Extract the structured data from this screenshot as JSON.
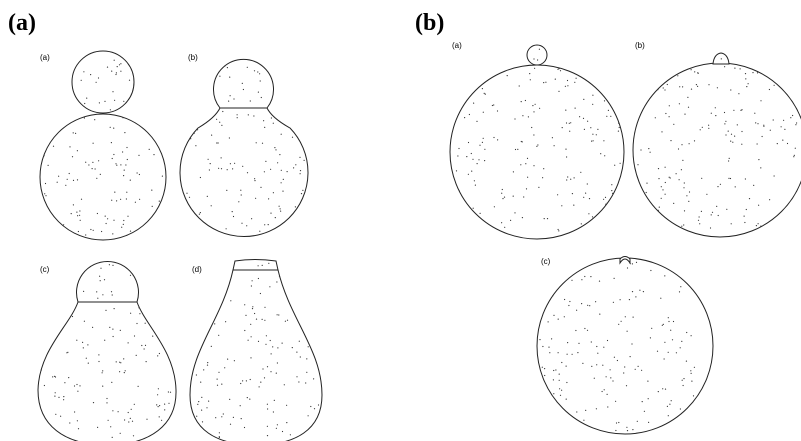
{
  "panels": [
    {
      "label": "(a)",
      "items": [
        {
          "label": "(a)"
        },
        {
          "label": "(b)"
        },
        {
          "label": "(c)"
        },
        {
          "label": "(d)"
        }
      ]
    },
    {
      "label": "(b)",
      "items": [
        {
          "label": "(a)"
        },
        {
          "label": "(b)"
        },
        {
          "label": "(c)"
        }
      ]
    }
  ]
}
